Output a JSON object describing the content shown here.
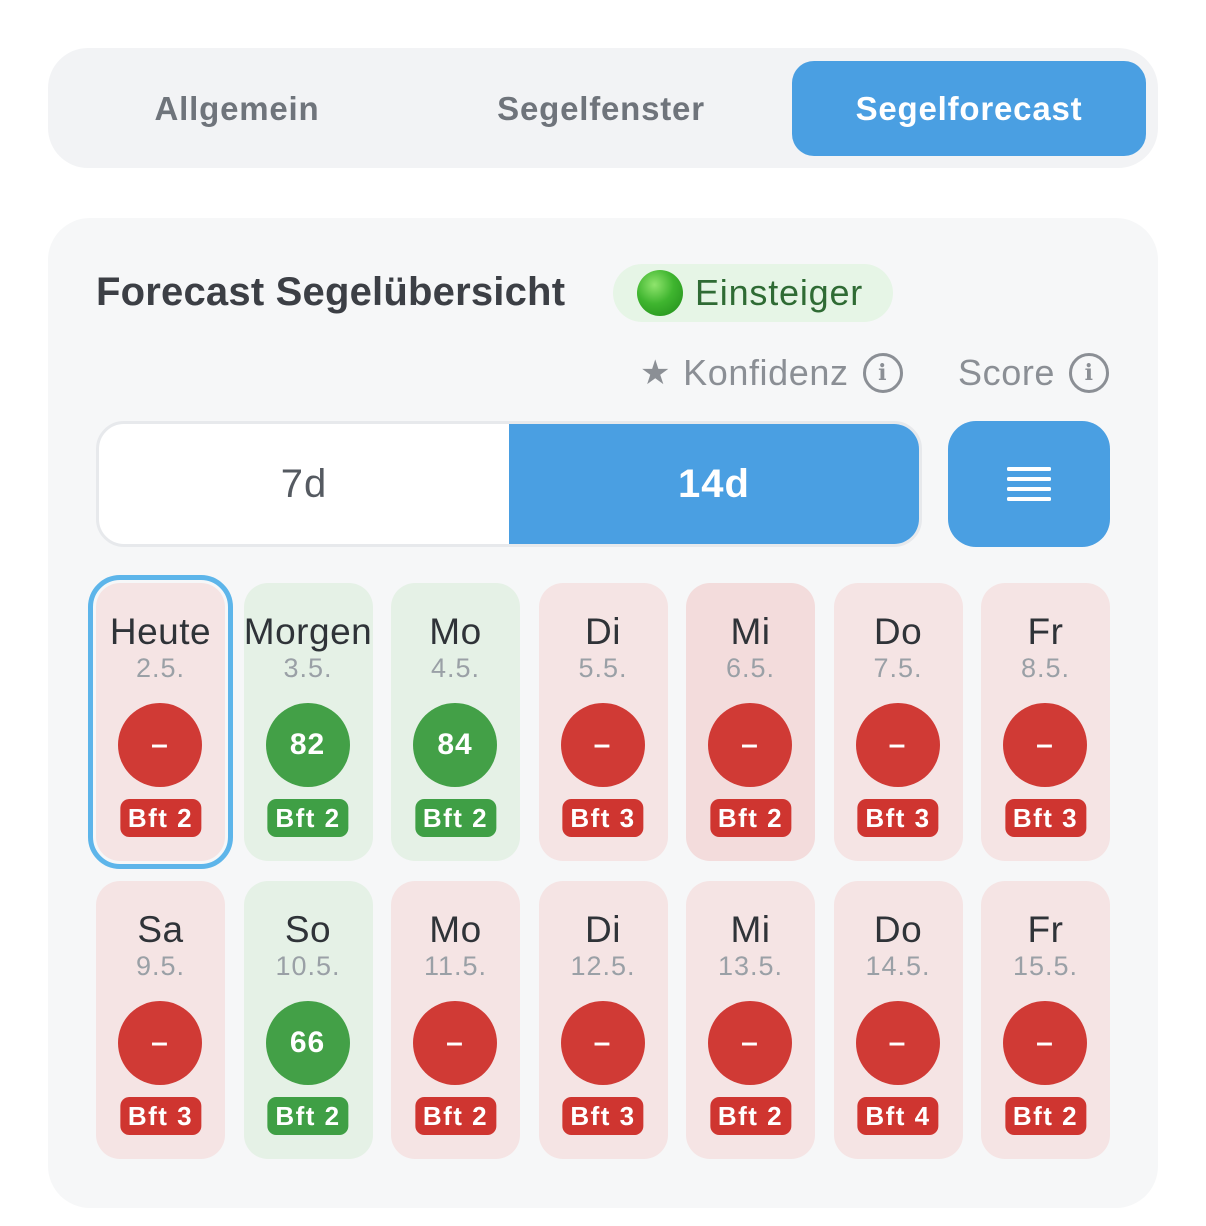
{
  "tabs": [
    {
      "label": "Allgemein",
      "active": false
    },
    {
      "label": "Segelfenster",
      "active": false
    },
    {
      "label": "Segelforecast",
      "active": true
    }
  ],
  "card": {
    "title": "Forecast Segelübersicht",
    "level": {
      "label": "Einsteiger",
      "color": "#3fb52f"
    },
    "meta": {
      "confidence_label": "Konfidenz",
      "score_label": "Score"
    },
    "range": {
      "options": [
        "7d",
        "14d"
      ],
      "selected": "14d"
    },
    "list_button_icon": "list-icon"
  },
  "colors": {
    "accent": "#4a9fe2",
    "bad": "#d03a35",
    "good": "#43a047"
  },
  "days": [
    {
      "name": "Heute",
      "date": "2.5.",
      "score": "–",
      "bft": "Bft 2",
      "status": "red",
      "selected": true
    },
    {
      "name": "Morgen",
      "date": "3.5.",
      "score": "82",
      "bft": "Bft 2",
      "status": "green",
      "selected": false
    },
    {
      "name": "Mo",
      "date": "4.5.",
      "score": "84",
      "bft": "Bft 2",
      "status": "green",
      "selected": false
    },
    {
      "name": "Di",
      "date": "5.5.",
      "score": "–",
      "bft": "Bft 3",
      "status": "red",
      "selected": false
    },
    {
      "name": "Mi",
      "date": "6.5.",
      "score": "–",
      "bft": "Bft 2",
      "status": "red",
      "strong": true,
      "selected": false
    },
    {
      "name": "Do",
      "date": "7.5.",
      "score": "–",
      "bft": "Bft 3",
      "status": "red",
      "selected": false
    },
    {
      "name": "Fr",
      "date": "8.5.",
      "score": "–",
      "bft": "Bft 3",
      "status": "red",
      "selected": false
    },
    {
      "name": "Sa",
      "date": "9.5.",
      "score": "–",
      "bft": "Bft 3",
      "status": "red",
      "selected": false
    },
    {
      "name": "So",
      "date": "10.5.",
      "score": "66",
      "bft": "Bft 2",
      "status": "green",
      "selected": false
    },
    {
      "name": "Mo",
      "date": "11.5.",
      "score": "–",
      "bft": "Bft 2",
      "status": "red",
      "selected": false
    },
    {
      "name": "Di",
      "date": "12.5.",
      "score": "–",
      "bft": "Bft 3",
      "status": "red",
      "selected": false
    },
    {
      "name": "Mi",
      "date": "13.5.",
      "score": "–",
      "bft": "Bft 2",
      "status": "red",
      "selected": false
    },
    {
      "name": "Do",
      "date": "14.5.",
      "score": "–",
      "bft": "Bft 4",
      "status": "red",
      "selected": false
    },
    {
      "name": "Fr",
      "date": "15.5.",
      "score": "–",
      "bft": "Bft 2",
      "status": "red",
      "selected": false
    }
  ]
}
